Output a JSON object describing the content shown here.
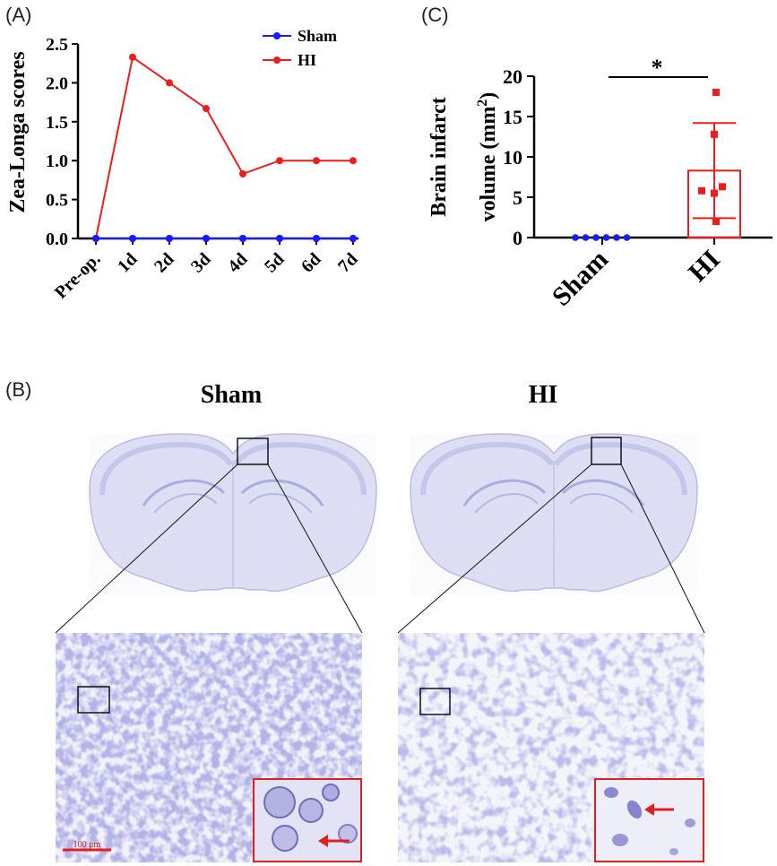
{
  "panels": {
    "A": {
      "letter": "(A)"
    },
    "B": {
      "letter": "(B)",
      "sham_title": "Sham",
      "hi_title": "HI",
      "scale_bar_label": "100 μm"
    },
    "C": {
      "letter": "(C)"
    }
  },
  "colors": {
    "sham": "#1a1aff",
    "hi": "#ee1c1c",
    "inset_border": "#e02020",
    "stain": "#7e7fd0"
  },
  "chart_data": [
    {
      "type": "line",
      "categories": [
        "Pre-op.",
        "1d",
        "2d",
        "3d",
        "4d",
        "5d",
        "6d",
        "7d"
      ],
      "series": [
        {
          "name": "Sham",
          "values": [
            0,
            0,
            0,
            0,
            0,
            0,
            0,
            0
          ],
          "color": "#1a1aff"
        },
        {
          "name": "HI",
          "values": [
            0,
            2.33,
            2.0,
            1.67,
            0.83,
            1.0,
            1.0,
            1.0
          ],
          "color": "#ee1c1c"
        }
      ],
      "ylabel": "Zea-Longa scores",
      "ylim": [
        0,
        2.5
      ],
      "yticks": [
        "0.0",
        "0.5",
        "1.0",
        "1.5",
        "2.0",
        "2.5"
      ],
      "legend": "top-right"
    },
    {
      "type": "bar",
      "categories": [
        "Sham",
        "HI"
      ],
      "values": [
        0,
        8.3
      ],
      "error": [
        0,
        5.9
      ],
      "points": {
        "Sham": [
          0,
          0,
          0,
          0,
          0,
          0
        ],
        "HI": [
          18,
          12.8,
          6.3,
          5.8,
          5.5,
          2
        ]
      },
      "ylabel_line1": "Brain infarct",
      "ylabel_line2": "volume (mm",
      "ylabel_sup": "2",
      "ylabel_close": ")",
      "ylim": [
        0,
        20
      ],
      "yticks": [
        "0",
        "5",
        "10",
        "15",
        "20"
      ],
      "annotation": "*"
    }
  ]
}
